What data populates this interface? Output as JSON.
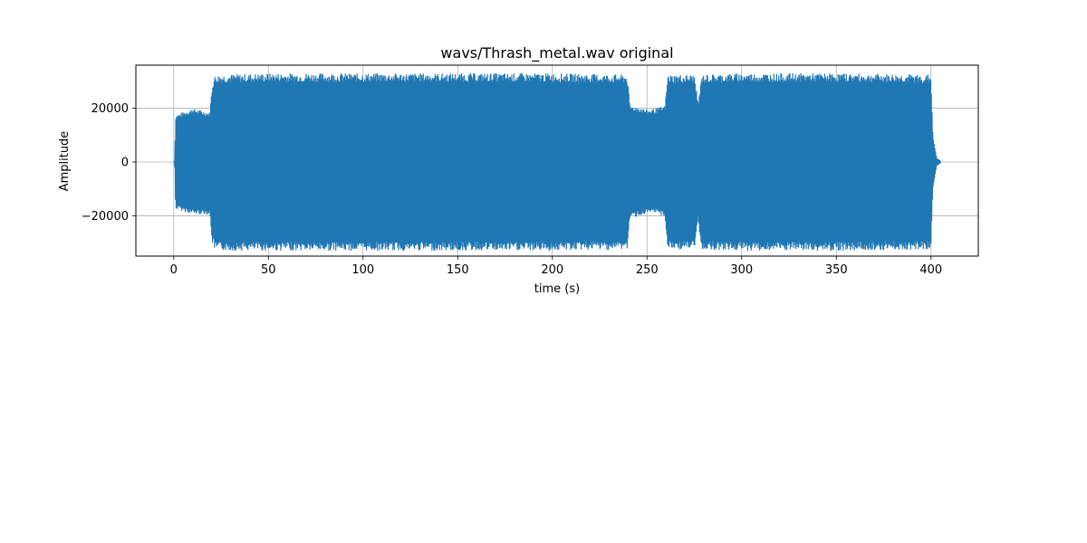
{
  "chart_data": {
    "type": "line",
    "title": "wavs/Thrash_metal.wav original",
    "xlabel": "time (s)",
    "ylabel": "Amplitude",
    "xlim": [
      -20,
      425
    ],
    "ylim": [
      -35000,
      36000
    ],
    "grid": true,
    "line_color": "#1f77b4",
    "x_ticks": [
      0,
      50,
      100,
      150,
      200,
      250,
      300,
      350,
      400
    ],
    "y_ticks": [
      -20000,
      0,
      20000
    ],
    "x_tick_labels": [
      "0",
      "50",
      "100",
      "150",
      "200",
      "250",
      "300",
      "350",
      "400"
    ],
    "y_tick_labels": [
      "−20000",
      "0",
      "20000"
    ],
    "series": [
      {
        "envelope_time_s": [
          0,
          0.5,
          1,
          10,
          19,
          20.5,
          22,
          50,
          100,
          150,
          200,
          239.5,
          241,
          246,
          250,
          255,
          259.5,
          261,
          275,
          277,
          279,
          300,
          350,
          400,
          401,
          403,
          405
        ],
        "envelope_max": [
          0,
          500,
          17500,
          20000,
          18500,
          30000,
          32500,
          33000,
          33000,
          33000,
          33000,
          32500,
          21000,
          20500,
          19500,
          20000,
          21000,
          32500,
          32500,
          22000,
          32500,
          33000,
          33000,
          32500,
          10000,
          1500,
          500
        ],
        "envelope_min": [
          0,
          -500,
          -17500,
          -19500,
          -19500,
          -31000,
          -33000,
          -33000,
          -33000,
          -33000,
          -33000,
          -32500,
          -21000,
          -20000,
          -19500,
          -19000,
          -20500,
          -32500,
          -32500,
          -22000,
          -32500,
          -33000,
          -33000,
          -32500,
          -10000,
          -1500,
          -500
        ]
      }
    ]
  }
}
